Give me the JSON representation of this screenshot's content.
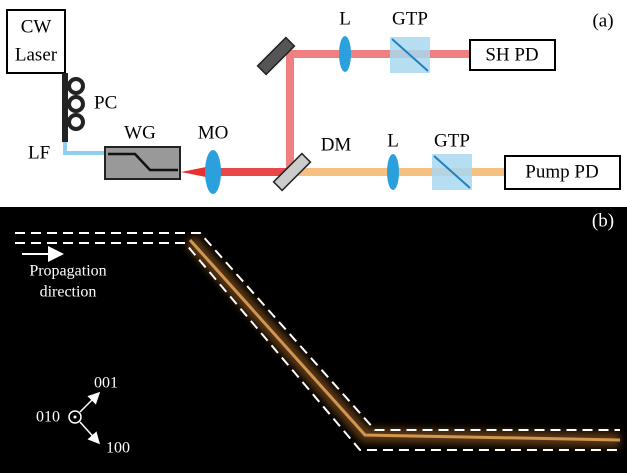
{
  "panel_a": {
    "label": "(a)",
    "laser": {
      "line1": "CW",
      "line2": "Laser"
    },
    "pc": "PC",
    "lf": "LF",
    "wg": "WG",
    "mo": "MO",
    "dm": "DM",
    "lens_upper": "L",
    "gtp_upper": "GTP",
    "sh_pd": "SH PD",
    "lens_lower": "L",
    "gtp_lower": "GTP",
    "pump_pd": "Pump PD"
  },
  "panel_b": {
    "label": "(b)",
    "propagation": {
      "line1": "Propagation",
      "line2": "direction"
    },
    "axes": {
      "origin": "010",
      "up": "001",
      "down": "100"
    }
  }
}
